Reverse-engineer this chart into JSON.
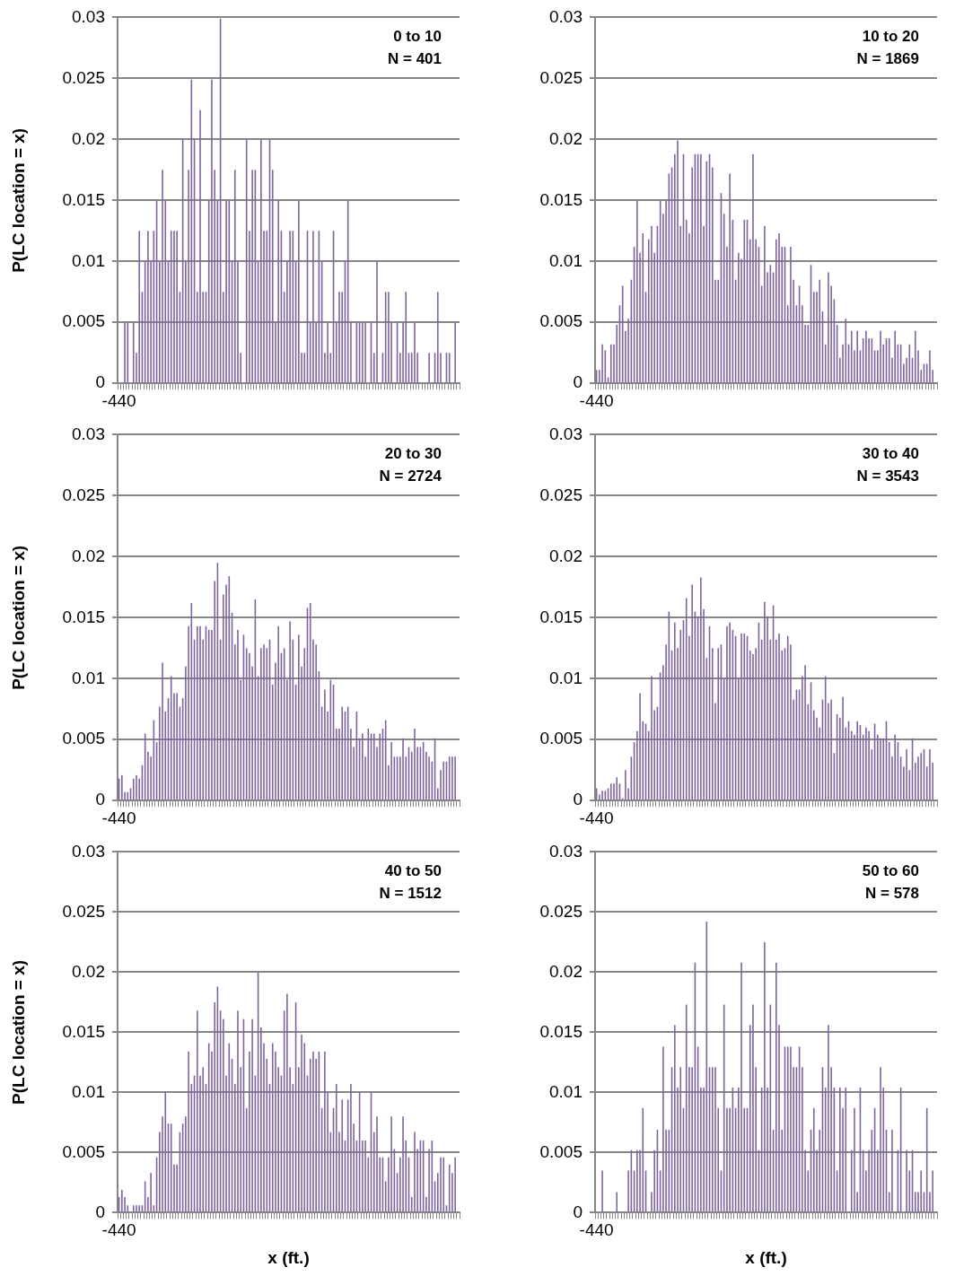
{
  "chart_data": [
    {
      "type": "bar",
      "ylabel": "P(LC location = x)",
      "annotations": [
        "0 to 10",
        "N = 401"
      ],
      "color": "#8064a2",
      "grid": "y",
      "ylim": [
        0,
        0.03
      ],
      "yticks": [
        0,
        0.005,
        0.01,
        0.015,
        0.02,
        0.025,
        0.03
      ],
      "categories": [
        "-440",
        null,
        null,
        null,
        null,
        null,
        null,
        null,
        null,
        null,
        null,
        null,
        null,
        null,
        null,
        null,
        null,
        null,
        null,
        null,
        null,
        null,
        null,
        null,
        null,
        null,
        null,
        null,
        null,
        null,
        null,
        null,
        null,
        null,
        null,
        null,
        null,
        null,
        null,
        null,
        null,
        null,
        null,
        null,
        null,
        null,
        null,
        null,
        null,
        null,
        null,
        null,
        null,
        null,
        null,
        null,
        null,
        null,
        null,
        null,
        null,
        null,
        null,
        null,
        null,
        null,
        null,
        null,
        null,
        null,
        null,
        null,
        null,
        null,
        null,
        null,
        null,
        null,
        null,
        null,
        null,
        null,
        null,
        null,
        null,
        null,
        null,
        null,
        null,
        null,
        null,
        null,
        null,
        null,
        null,
        null,
        null,
        null,
        null,
        null,
        null,
        null,
        null,
        null,
        null,
        null,
        null,
        null,
        null,
        null,
        null,
        null,
        null,
        null,
        null,
        null,
        null,
        null
      ],
      "values": [
        0,
        0,
        0.005,
        0.005,
        0,
        0.005,
        0.0025,
        0.0125,
        0.0075,
        0.01,
        0.0125,
        0.01,
        0.0125,
        0.015,
        0.01,
        0.0175,
        0.015,
        0.01,
        0.0125,
        0.0125,
        0.0125,
        0.0075,
        0.02,
        0.01,
        0.0175,
        0.0249,
        0.02,
        0.0075,
        0.0224,
        0.0075,
        0.0075,
        0.015,
        0.0249,
        0.0175,
        0.015,
        0.0299,
        0.0075,
        0.015,
        0.015,
        0.01,
        0.0175,
        0.01,
        0.0025,
        0,
        0.02,
        0.0125,
        0.0175,
        0.0175,
        0.01,
        0.02,
        0.0125,
        0.0125,
        0.02,
        0.0175,
        0.005,
        0.015,
        0.0125,
        0.0075,
        0.01,
        0.0125,
        0.0125,
        0.01,
        0.015,
        0.0025,
        0.0025,
        0.0125,
        0.005,
        0.0125,
        0.005,
        0.0125,
        0.01,
        0.0025,
        0.005,
        0.0025,
        0.0125,
        0.005,
        0.0075,
        0.0075,
        0.01,
        0.015,
        0.005,
        0,
        0.005,
        0.005,
        0.005,
        0.005,
        0,
        0.005,
        0.0025,
        0.01,
        0,
        0.0025,
        0.0075,
        0.0075,
        0.005,
        0,
        0.005,
        0.0025,
        0.005,
        0.0075,
        0.0025,
        0.0025,
        0.005,
        0.0025,
        0,
        0,
        0,
        0.0025,
        0,
        0.0025,
        0.0075,
        0.0025,
        0,
        0.0025,
        0.0025,
        0,
        0.005,
        0
      ]
    },
    {
      "type": "bar",
      "annotations": [
        "10 to 20",
        "N = 1869"
      ],
      "color": "#8064a2",
      "grid": "y",
      "ylim": [
        0,
        0.03
      ],
      "yticks": [
        0,
        0.005,
        0.01,
        0.015,
        0.02,
        0.025,
        0.03
      ],
      "categories": [
        "-440",
        null,
        null,
        null,
        null,
        null,
        null,
        null,
        null,
        null,
        null,
        null,
        null,
        null,
        null,
        null,
        null,
        null,
        null,
        null,
        null,
        null,
        null,
        null,
        null,
        null,
        null,
        null,
        null,
        null,
        null,
        null,
        null,
        null,
        null,
        null,
        null,
        null,
        null,
        null,
        null,
        null,
        null,
        null,
        null,
        null,
        null,
        null,
        null,
        null,
        null,
        null,
        null,
        null,
        null,
        null,
        null,
        null,
        null,
        null,
        null,
        null,
        null,
        null,
        null,
        null,
        null,
        null,
        null,
        null,
        null,
        null,
        null,
        null,
        null,
        null,
        null,
        null,
        null,
        null,
        null,
        null,
        null,
        null,
        null,
        null,
        null,
        null,
        null,
        null,
        null,
        null,
        null,
        null,
        null,
        null,
        null,
        null,
        null,
        null,
        null,
        null,
        null,
        null,
        null,
        null,
        null,
        null,
        null,
        null,
        null,
        null,
        null,
        null,
        null,
        null,
        null,
        null
      ],
      "values": [
        0.0011,
        0.0011,
        0.0032,
        0.0027,
        0.0005,
        0.0032,
        0.0032,
        0.0048,
        0.0064,
        0.008,
        0.0043,
        0.0053,
        0.0085,
        0.0112,
        0.015,
        0.0107,
        0.0123,
        0.0075,
        0.0118,
        0.0129,
        0.0107,
        0.0129,
        0.015,
        0.0139,
        0.015,
        0.0172,
        0.0177,
        0.0188,
        0.0199,
        0.0129,
        0.0188,
        0.0134,
        0.0123,
        0.0177,
        0.0188,
        0.0188,
        0.0188,
        0.0129,
        0.0182,
        0.0188,
        0.0177,
        0.0085,
        0.0085,
        0.0156,
        0.0139,
        0.0112,
        0.0172,
        0.0134,
        0.0085,
        0.0107,
        0.0102,
        0.0134,
        0.0134,
        0.0118,
        0.0188,
        0.0118,
        0.0112,
        0.008,
        0.0129,
        0.0091,
        0.0097,
        0.0091,
        0.0118,
        0.0123,
        0.0112,
        0.0112,
        0.0064,
        0.0112,
        0.0085,
        0.0064,
        0.008,
        0.0064,
        0.0048,
        0.0048,
        0.0097,
        0.0075,
        0.0075,
        0.0085,
        0.0059,
        0.0032,
        0.0091,
        0.008,
        0.0069,
        0.0048,
        0.0021,
        0.0032,
        0.0053,
        0.0032,
        0.0043,
        0.0027,
        0.0043,
        0.0027,
        0.0037,
        0.0043,
        0.0037,
        0.0037,
        0.0027,
        0.0027,
        0.0043,
        0.0032,
        0.0037,
        0.0037,
        0.0021,
        0.0043,
        0.0032,
        0.0032,
        0.0016,
        0.0021,
        0.0032,
        0.0021,
        0.0043,
        0.0027,
        0.0011,
        0.0016,
        0.0016,
        0.0027,
        0.0011,
        0
      ]
    },
    {
      "type": "bar",
      "ylabel": "P(LC location = x)",
      "annotations": [
        "20 to 30",
        "N = 2724"
      ],
      "color": "#8064a2",
      "grid": "y",
      "ylim": [
        0,
        0.03
      ],
      "yticks": [
        0,
        0.005,
        0.01,
        0.015,
        0.02,
        0.025,
        0.03
      ],
      "categories": [
        "-440",
        null,
        null,
        null,
        null,
        null,
        null,
        null,
        null,
        null,
        null,
        null,
        null,
        null,
        null,
        null,
        null,
        null,
        null,
        null,
        null,
        null,
        null,
        null,
        null,
        null,
        null,
        null,
        null,
        null,
        null,
        null,
        null,
        null,
        null,
        null,
        null,
        null,
        null,
        null,
        null,
        null,
        null,
        null,
        null,
        null,
        null,
        null,
        null,
        null,
        null,
        null,
        null,
        null,
        null,
        null,
        null,
        null,
        null,
        null,
        null,
        null,
        null,
        null,
        null,
        null,
        null,
        null,
        null,
        null,
        null,
        null,
        null,
        null,
        null,
        null,
        null,
        null,
        null,
        null,
        null,
        null,
        null,
        null,
        null,
        null,
        null,
        null,
        null,
        null,
        null,
        null,
        null,
        null,
        null,
        null,
        null,
        null,
        null,
        null,
        null,
        null,
        null,
        null,
        null,
        null,
        null,
        null,
        null,
        null,
        null,
        null,
        null,
        null,
        null,
        null,
        null,
        null
      ],
      "values": [
        0.0018,
        0.0021,
        0.0007,
        0.0007,
        0.001,
        0.0018,
        0.0021,
        0.0018,
        0.0029,
        0.0055,
        0.004,
        0.0036,
        0.0066,
        0.0048,
        0.0077,
        0.0113,
        0.0073,
        0.0084,
        0.0102,
        0.0088,
        0.0088,
        0.0077,
        0.0084,
        0.011,
        0.0143,
        0.0162,
        0.0132,
        0.0143,
        0.0143,
        0.0132,
        0.0143,
        0.014,
        0.014,
        0.018,
        0.0195,
        0.0132,
        0.0169,
        0.0177,
        0.0184,
        0.0154,
        0.0128,
        0.014,
        0.0099,
        0.0136,
        0.0125,
        0.0121,
        0.011,
        0.0165,
        0.0102,
        0.0125,
        0.0128,
        0.0125,
        0.0132,
        0.0095,
        0.0113,
        0.0143,
        0.0121,
        0.0125,
        0.0099,
        0.0147,
        0.0132,
        0.0095,
        0.0136,
        0.011,
        0.0125,
        0.0158,
        0.0162,
        0.0132,
        0.0128,
        0.0106,
        0.0077,
        0.0091,
        0.0073,
        0.0099,
        0.0095,
        0.0059,
        0.0059,
        0.0077,
        0.0073,
        0.0077,
        0.0059,
        0.0044,
        0.0073,
        0.0051,
        0.0055,
        0.0036,
        0.0059,
        0.0055,
        0.0055,
        0.0044,
        0.0055,
        0.0059,
        0.0066,
        0.0029,
        0.0048,
        0.0036,
        0.0036,
        0.0036,
        0.0051,
        0.0036,
        0.0044,
        0.004,
        0.0059,
        0.0044,
        0.0044,
        0.0048,
        0.004,
        0.0036,
        0.0032,
        0.0051,
        0.001,
        0.0025,
        0.0032,
        0.0032,
        0.0036,
        0.0036,
        0.0036,
        0
      ]
    },
    {
      "type": "bar",
      "annotations": [
        "30 to 40",
        "N = 3543"
      ],
      "color": "#8064a2",
      "grid": "y",
      "ylim": [
        0,
        0.03
      ],
      "yticks": [
        0,
        0.005,
        0.01,
        0.015,
        0.02,
        0.025,
        0.03
      ],
      "categories": [
        "-440",
        null,
        null,
        null,
        null,
        null,
        null,
        null,
        null,
        null,
        null,
        null,
        null,
        null,
        null,
        null,
        null,
        null,
        null,
        null,
        null,
        null,
        null,
        null,
        null,
        null,
        null,
        null,
        null,
        null,
        null,
        null,
        null,
        null,
        null,
        null,
        null,
        null,
        null,
        null,
        null,
        null,
        null,
        null,
        null,
        null,
        null,
        null,
        null,
        null,
        null,
        null,
        null,
        null,
        null,
        null,
        null,
        null,
        null,
        null,
        null,
        null,
        null,
        null,
        null,
        null,
        null,
        null,
        null,
        null,
        null,
        null,
        null,
        null,
        null,
        null,
        null,
        null,
        null,
        null,
        null,
        null,
        null,
        null,
        null,
        null,
        null,
        null,
        null,
        null,
        null,
        null,
        null,
        null,
        null,
        null,
        null,
        null,
        null,
        null,
        null,
        null,
        null,
        null,
        null,
        null,
        null,
        null,
        null,
        null,
        null,
        null,
        null,
        null,
        null,
        null,
        null,
        null
      ],
      "values": [
        0.001,
        0.0005,
        0.0008,
        0.0008,
        0.001,
        0.0014,
        0.0014,
        0.0019,
        0.0014,
        0.0002,
        0.0025,
        0.001,
        0.0036,
        0.0048,
        0.0057,
        0.0088,
        0.0065,
        0.0063,
        0.0057,
        0.0102,
        0.0074,
        0.0077,
        0.0105,
        0.0111,
        0.0128,
        0.0155,
        0.0123,
        0.0146,
        0.0125,
        0.014,
        0.0148,
        0.0166,
        0.0135,
        0.0177,
        0.0155,
        0.0151,
        0.0183,
        0.0157,
        0.0117,
        0.0143,
        0.0125,
        0.008,
        0.0125,
        0.0128,
        0.01,
        0.0143,
        0.0146,
        0.014,
        0.0135,
        0.01,
        0.0137,
        0.0137,
        0.0135,
        0.0123,
        0.012,
        0.0125,
        0.0146,
        0.0132,
        0.0163,
        0.0151,
        0.0132,
        0.016,
        0.0132,
        0.0137,
        0.0123,
        0.0125,
        0.0135,
        0.0128,
        0.0083,
        0.0091,
        0.0091,
        0.0102,
        0.0111,
        0.0079,
        0.0097,
        0.0074,
        0.0068,
        0.006,
        0.0083,
        0.0102,
        0.008,
        0.0083,
        0.0039,
        0.0071,
        0.0068,
        0.0085,
        0.006,
        0.0065,
        0.0057,
        0.0054,
        0.0065,
        0.0062,
        0.0054,
        0.006,
        0.0057,
        0.0042,
        0.0063,
        0.0054,
        0.0051,
        0.0051,
        0.0065,
        0.0048,
        0.0036,
        0.0054,
        0.0048,
        0.0036,
        0.0028,
        0.0042,
        0.0025,
        0.0051,
        0.0031,
        0.0036,
        0.0039,
        0.0042,
        0.0028,
        0.0042,
        0.0031,
        0
      ]
    },
    {
      "type": "bar",
      "ylabel": "P(LC location = x)",
      "xlabel": "x (ft.)",
      "annotations": [
        "40 to 50",
        "N = 1512"
      ],
      "color": "#8064a2",
      "grid": "y",
      "ylim": [
        0,
        0.03
      ],
      "yticks": [
        0,
        0.005,
        0.01,
        0.015,
        0.02,
        0.025,
        0.03
      ],
      "categories": [
        "-440",
        null,
        null,
        null,
        null,
        null,
        null,
        null,
        null,
        null,
        null,
        null,
        null,
        null,
        null,
        null,
        null,
        null,
        null,
        null,
        null,
        null,
        null,
        null,
        null,
        null,
        null,
        null,
        null,
        null,
        null,
        null,
        null,
        null,
        null,
        null,
        null,
        null,
        null,
        null,
        null,
        null,
        null,
        null,
        null,
        null,
        null,
        null,
        null,
        null,
        null,
        null,
        null,
        null,
        null,
        null,
        null,
        null,
        null,
        null,
        null,
        null,
        null,
        null,
        null,
        null,
        null,
        null,
        null,
        null,
        null,
        null,
        null,
        null,
        null,
        null,
        null,
        null,
        null,
        null,
        null,
        null,
        null,
        null,
        null,
        null,
        null,
        null,
        null,
        null,
        null,
        null,
        null,
        null,
        null,
        null,
        null,
        null,
        null,
        null,
        null,
        null,
        null,
        null,
        null,
        null,
        null,
        null,
        null,
        null,
        null,
        null,
        null,
        null,
        null,
        null,
        null,
        null
      ],
      "values": [
        0.0013,
        0.0019,
        0.0013,
        0.0006,
        0,
        0.0006,
        0.0006,
        0.0006,
        0.0006,
        0.0026,
        0.0013,
        0.0033,
        0.0006,
        0.0046,
        0.0067,
        0.008,
        0.01,
        0.0074,
        0.0074,
        0.004,
        0.004,
        0.0067,
        0.0074,
        0.008,
        0.0134,
        0.0107,
        0.0114,
        0.0168,
        0.0114,
        0.0121,
        0.0107,
        0.0141,
        0.0134,
        0.0175,
        0.0188,
        0.0168,
        0.0161,
        0.0114,
        0.0141,
        0.0128,
        0.0107,
        0.0168,
        0.0121,
        0.0161,
        0.0087,
        0.0134,
        0.0161,
        0.0114,
        0.02,
        0.0154,
        0.0141,
        0.0128,
        0.0107,
        0.0141,
        0.0134,
        0.0121,
        0.0114,
        0.0168,
        0.0182,
        0.0121,
        0.0107,
        0.0175,
        0.0121,
        0.0148,
        0.0141,
        0.0114,
        0.0128,
        0.0134,
        0.0128,
        0.0134,
        0.0087,
        0.0134,
        0.01,
        0.0067,
        0.0087,
        0.0107,
        0.0067,
        0.0094,
        0.006,
        0.0094,
        0.0107,
        0.0074,
        0.006,
        0.01,
        0.006,
        0.006,
        0.0046,
        0.01,
        0.0067,
        0.008,
        0.0046,
        0.0046,
        0.0026,
        0.0046,
        0.008,
        0.0053,
        0.0033,
        0.0046,
        0.008,
        0.006,
        0.0046,
        0.0013,
        0.0067,
        0.0053,
        0.006,
        0.006,
        0.0013,
        0.0053,
        0.006,
        0.0026,
        0.0033,
        0.0046,
        0.0046,
        0.0006,
        0.004,
        0.0033,
        0.0046,
        0
      ]
    },
    {
      "type": "bar",
      "xlabel": "x (ft.)",
      "annotations": [
        "50 to 60",
        "N = 578"
      ],
      "color": "#8064a2",
      "grid": "y",
      "ylim": [
        0,
        0.03
      ],
      "yticks": [
        0,
        0.005,
        0.01,
        0.015,
        0.02,
        0.025,
        0.03
      ],
      "categories": [
        "-440",
        null,
        null,
        null,
        null,
        null,
        null,
        null,
        null,
        null,
        null,
        null,
        null,
        null,
        null,
        null,
        null,
        null,
        null,
        null,
        null,
        null,
        null,
        null,
        null,
        null,
        null,
        null,
        null,
        null,
        null,
        null,
        null,
        null,
        null,
        null,
        null,
        null,
        null,
        null,
        null,
        null,
        null,
        null,
        null,
        null,
        null,
        null,
        null,
        null,
        null,
        null,
        null,
        null,
        null,
        null,
        null,
        null,
        null,
        null,
        null,
        null,
        null,
        null,
        null,
        null,
        null,
        null,
        null,
        null,
        null,
        null,
        null,
        null,
        null,
        null,
        null,
        null,
        null,
        null,
        null,
        null,
        null,
        null,
        null,
        null,
        null,
        null,
        null,
        null,
        null,
        null,
        null,
        null,
        null,
        null,
        null,
        null,
        null,
        null,
        null,
        null,
        null,
        null,
        null,
        null,
        null,
        null,
        null,
        null,
        null,
        null,
        null,
        null,
        null,
        null,
        null,
        null
      ],
      "values": [
        0,
        0,
        0.0035,
        0,
        0,
        0,
        0,
        0.0017,
        0,
        0,
        0,
        0.0035,
        0.0052,
        0.0035,
        0.0052,
        0.0052,
        0.0087,
        0.0035,
        0,
        0.0017,
        0.0052,
        0.0069,
        0.0035,
        0.0138,
        0.0069,
        0.0069,
        0.0121,
        0.0156,
        0.0104,
        0.0121,
        0.0087,
        0.0173,
        0.0121,
        0.0121,
        0.0208,
        0.0138,
        0.0104,
        0.0104,
        0.0242,
        0.0121,
        0.0121,
        0.0121,
        0.0087,
        0.0035,
        0.0173,
        0.0087,
        0.0087,
        0.0104,
        0.0087,
        0.0104,
        0.0208,
        0.0087,
        0.0087,
        0.0156,
        0.0173,
        0.0121,
        0.0052,
        0.0104,
        0.0225,
        0.0104,
        0.0173,
        0.0069,
        0.0208,
        0.0156,
        0.0069,
        0.0138,
        0.0138,
        0.0138,
        0.0121,
        0.0121,
        0.0138,
        0.0121,
        0.0052,
        0.0035,
        0.0069,
        0.0087,
        0.0052,
        0.0069,
        0.0121,
        0.0104,
        0.0156,
        0.0121,
        0.0104,
        0.0035,
        0.0104,
        0.0087,
        0.0104,
        0,
        0.0052,
        0.0087,
        0.0017,
        0.0104,
        0.0052,
        0.0035,
        0.0052,
        0.0069,
        0.0087,
        0.0052,
        0.0121,
        0.0104,
        0.0069,
        0.0017,
        0.0069,
        0,
        0.0052,
        0.0104,
        0,
        0.0052,
        0.0035,
        0.0052,
        0.0017,
        0.0017,
        0.0035,
        0.0017,
        0.0087,
        0.0017,
        0.0035,
        0
      ]
    }
  ]
}
